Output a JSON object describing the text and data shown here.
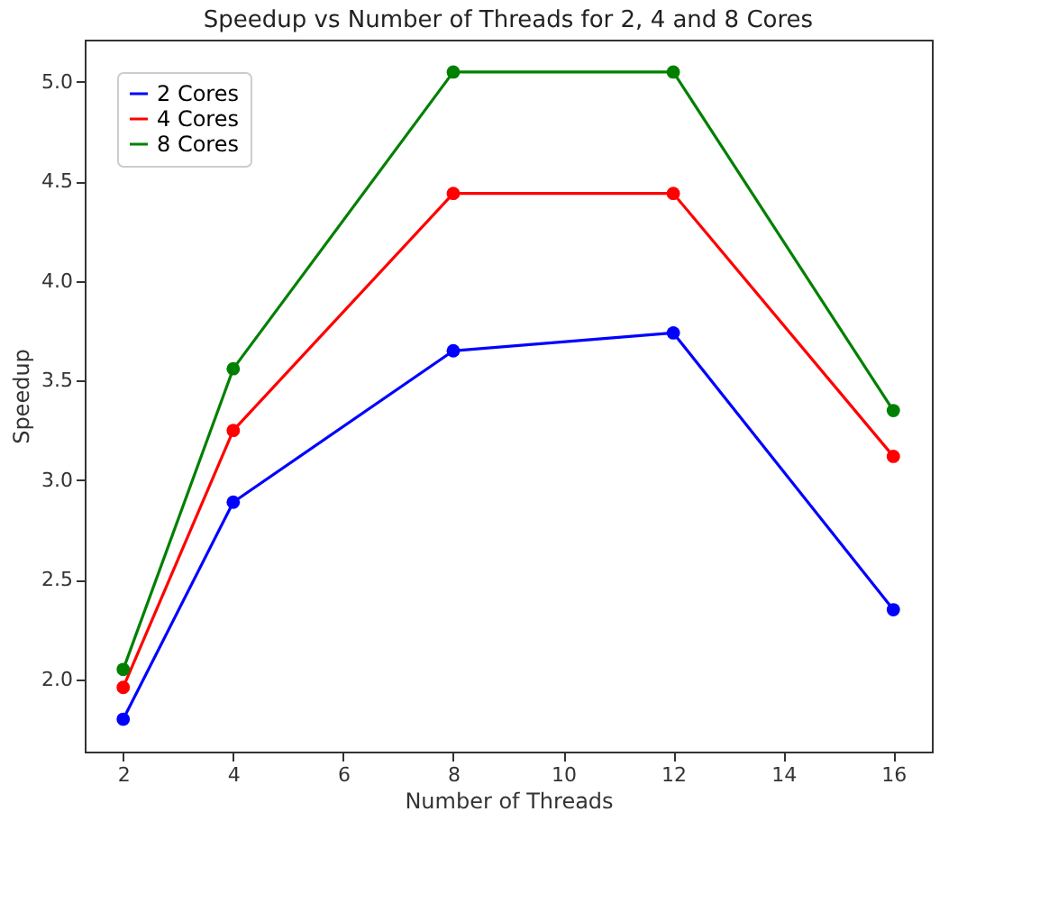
{
  "chart_data": {
    "type": "line",
    "title": "Speedup vs Number of Threads for 2, 4 and 8 Cores",
    "xlabel": "Number of Threads",
    "ylabel": "Speedup",
    "x": [
      2,
      4,
      8,
      12,
      16
    ],
    "series": [
      {
        "name": "2 Cores",
        "color": "#0000ff",
        "values": [
          1.8,
          2.89,
          3.65,
          3.74,
          2.35
        ]
      },
      {
        "name": "4 Cores",
        "color": "#ff0000",
        "values": [
          1.96,
          3.25,
          4.44,
          4.44,
          3.12
        ]
      },
      {
        "name": "8 Cores",
        "color": "#008000",
        "values": [
          2.05,
          3.56,
          5.05,
          5.05,
          3.35
        ]
      }
    ],
    "xlim": [
      1.3,
      16.7
    ],
    "xticks": [
      2,
      4,
      6,
      8,
      10,
      12,
      14,
      16
    ],
    "ylim": [
      1.6375,
      5.2125
    ],
    "yticks": [
      {
        "value": 2,
        "label": "2.0"
      },
      2.5,
      {
        "value": 3,
        "label": "3.0"
      },
      3.5,
      {
        "value": 4,
        "label": "4.0"
      },
      4.5,
      {
        "value": 5,
        "label": "5.0"
      }
    ],
    "grid": false,
    "legend": "top left",
    "marker": "circle",
    "line_style": "solid"
  }
}
